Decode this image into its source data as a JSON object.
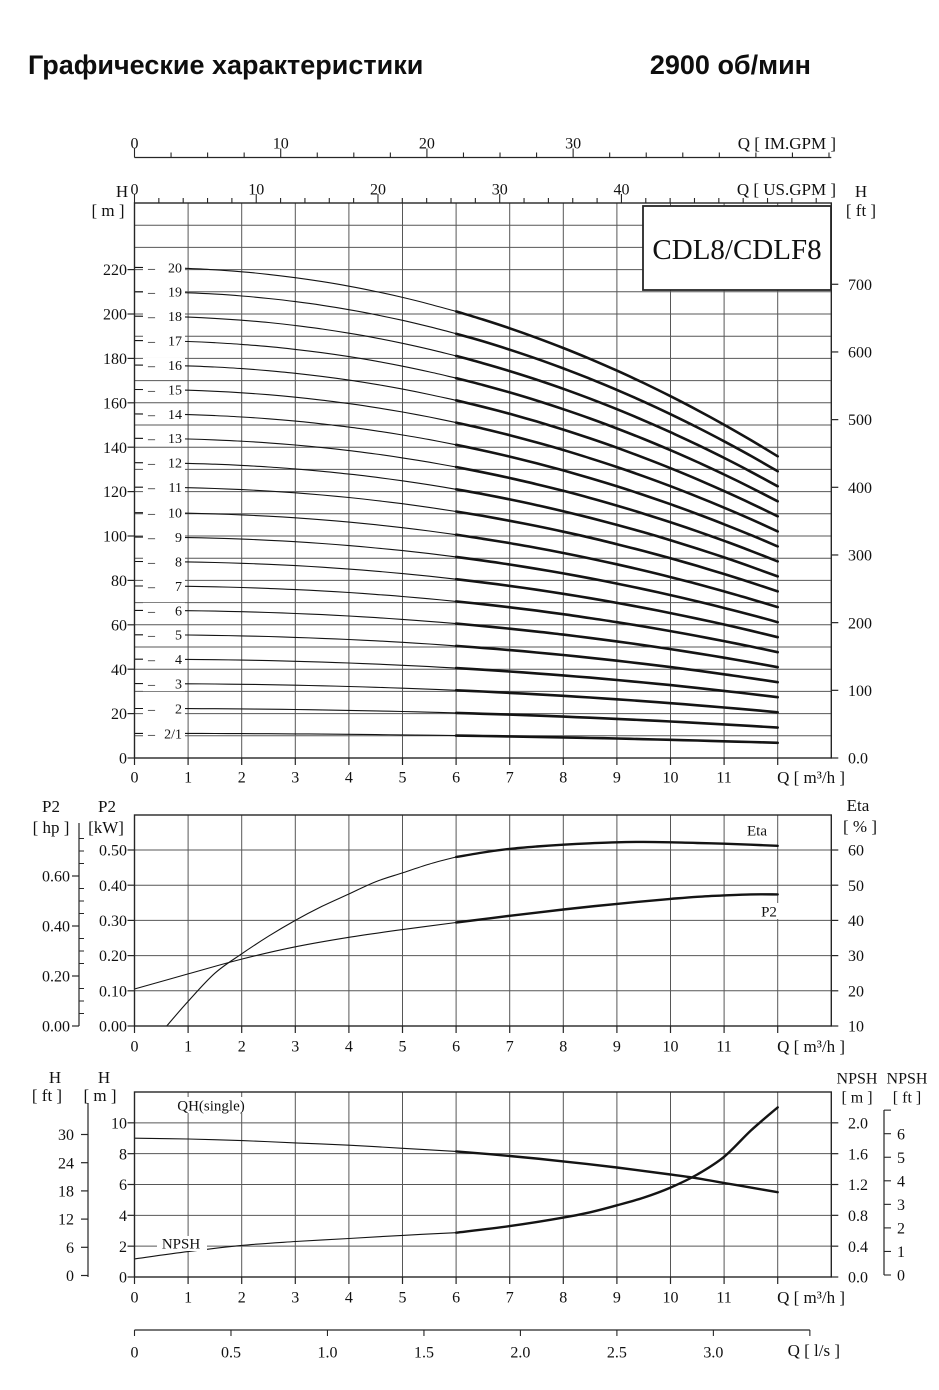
{
  "title": {
    "left": "Графические характеристики",
    "right": "2900 об/мин"
  },
  "colors": {
    "curve": "#141414",
    "grid": "#575757",
    "axis": "#262626",
    "text": "#111111",
    "background": "#ffffff"
  },
  "chart_data": [
    {
      "type": "line",
      "title": "CDL8/CDLF8",
      "model": "CDL8/CDLF8",
      "im_axis": {
        "header": "Q [ IM.GPM ]",
        "labels": [
          0,
          10,
          20,
          30
        ],
        "units_per_m3h": 3.666,
        "minor_step": 2.5
      },
      "us_axis": {
        "header": "Q [ US.GPM ]",
        "labels": [
          0,
          10,
          20,
          30,
          40
        ],
        "units_per_m3h": 4.403,
        "minor_step": 2
      },
      "x_axis": {
        "header": "Q [ m³/h ]",
        "labels": [
          "0",
          "1",
          "2",
          "3",
          "4",
          "5",
          "6",
          "7",
          "8",
          "9",
          "10",
          "11"
        ],
        "range": [
          0,
          13
        ],
        "grid_step": 1
      },
      "y_left": {
        "name": "H",
        "unit": "[ m ]",
        "labels": [
          0,
          20,
          40,
          60,
          80,
          100,
          120,
          140,
          160,
          180,
          200,
          220
        ],
        "range": [
          0,
          250
        ],
        "grid_step": 10
      },
      "y_right": {
        "name": "H",
        "unit": "[ ft ]",
        "labels": [
          "0.0",
          "100",
          "200",
          "300",
          "400",
          "500",
          "600",
          "700"
        ]
      },
      "curve_shape": {
        "droop": 0.385,
        "exponent": 2.1,
        "q_start": 0,
        "q_end": 12,
        "bold_from": 6
      },
      "stages": [
        {
          "label": "– 20",
          "h0": 221
        },
        {
          "label": "– 19",
          "h0": 210
        },
        {
          "label": "– 18",
          "h0": 199
        },
        {
          "label": "– 17",
          "h0": 188
        },
        {
          "label": "– 16",
          "h0": 177
        },
        {
          "label": "– 15",
          "h0": 166
        },
        {
          "label": "– 14",
          "h0": 155
        },
        {
          "label": "– 13",
          "h0": 144
        },
        {
          "label": "– 12",
          "h0": 133
        },
        {
          "label": "– 11",
          "h0": 122
        },
        {
          "label": "– 10",
          "h0": 110.5
        },
        {
          "label": "– 9",
          "h0": 99.5
        },
        {
          "label": "– 8",
          "h0": 88.5
        },
        {
          "label": "– 7",
          "h0": 77.5
        },
        {
          "label": "– 6",
          "h0": 66.5
        },
        {
          "label": "– 5",
          "h0": 55.5
        },
        {
          "label": "– 4",
          "h0": 44.5
        },
        {
          "label": "– 3",
          "h0": 33.5
        },
        {
          "label": "– 2",
          "h0": 22.3
        },
        {
          "label": "–2/1",
          "h0": 11.1
        }
      ]
    },
    {
      "type": "line",
      "x_axis": {
        "header": "Q [ m³/h ]",
        "labels": [
          "0",
          "1",
          "2",
          "3",
          "4",
          "5",
          "6",
          "7",
          "8",
          "9",
          "10",
          "11"
        ],
        "range": [
          0,
          13
        ],
        "grid_step": 1
      },
      "y_hp": {
        "name": "P2",
        "unit": "[ hp ]",
        "labels": [
          "0.00",
          "0.20",
          "0.40",
          "0.60"
        ],
        "minor_step": 0.05,
        "range": [
          0,
          0.8
        ]
      },
      "y_kw": {
        "name": "P2",
        "unit": "[kW]",
        "labels": [
          "0.00",
          "0.10",
          "0.20",
          "0.30",
          "0.40",
          "0.50"
        ],
        "range": [
          0,
          0.6
        ]
      },
      "y_eta": {
        "name": "Eta",
        "unit": "[ % ]",
        "labels": [
          10,
          20,
          30,
          40,
          50,
          60
        ],
        "range": [
          10,
          70
        ]
      },
      "bold_from": 6,
      "series": [
        {
          "name": "P2",
          "label": "P2",
          "unit": "kW",
          "points": [
            [
              0,
              0.105
            ],
            [
              1,
              0.148
            ],
            [
              2,
              0.19
            ],
            [
              3,
              0.225
            ],
            [
              4,
              0.252
            ],
            [
              5,
              0.274
            ],
            [
              6,
              0.294
            ],
            [
              7,
              0.313
            ],
            [
              8,
              0.331
            ],
            [
              9,
              0.347
            ],
            [
              10,
              0.361
            ],
            [
              10.5,
              0.367
            ],
            [
              11,
              0.371
            ],
            [
              11.5,
              0.374
            ],
            [
              12,
              0.374
            ]
          ]
        },
        {
          "name": "Eta",
          "label": "Eta",
          "unit": "%",
          "points": [
            [
              0.6,
              10
            ],
            [
              1,
              17
            ],
            [
              1.5,
              25
            ],
            [
              2,
              30.5
            ],
            [
              2.5,
              35.5
            ],
            [
              3,
              40
            ],
            [
              3.5,
              44
            ],
            [
              4,
              47.5
            ],
            [
              4.5,
              51
            ],
            [
              5,
              53.5
            ],
            [
              5.5,
              56
            ],
            [
              6,
              58
            ],
            [
              6.5,
              59.3
            ],
            [
              7,
              60.3
            ],
            [
              7.5,
              61
            ],
            [
              8,
              61.5
            ],
            [
              8.5,
              61.9
            ],
            [
              9,
              62.2
            ],
            [
              9.5,
              62.3
            ],
            [
              10,
              62.2
            ],
            [
              10.5,
              62
            ],
            [
              11,
              61.8
            ],
            [
              11.5,
              61.5
            ],
            [
              12,
              61.2
            ]
          ]
        }
      ]
    },
    {
      "type": "line",
      "x_axis": {
        "header": "Q [ m³/h ]",
        "labels": [
          "0",
          "1",
          "2",
          "3",
          "4",
          "5",
          "6",
          "7",
          "8",
          "9",
          "10",
          "11"
        ],
        "range": [
          0,
          13
        ],
        "grid_step": 1
      },
      "ls_axis": {
        "header": "Q [ l/s ]",
        "labels": [
          "0",
          "0.5",
          "1.0",
          "1.5",
          "2.0",
          "2.5",
          "3.0"
        ],
        "units_per_m3h": 0.2778
      },
      "y_ft": {
        "name": "H",
        "unit": "[ ft ]",
        "labels": [
          0,
          6,
          12,
          18,
          24,
          30
        ]
      },
      "y_m": {
        "name": "H",
        "unit": "[ m ]",
        "labels": [
          0,
          2,
          4,
          6,
          8,
          10
        ],
        "range": [
          0,
          12
        ],
        "grid_step": 2
      },
      "y_npsh_m": {
        "name": "NPSH",
        "unit": "[ m ]",
        "labels": [
          "0.0",
          "0.4",
          "0.8",
          "1.2",
          "1.6",
          "2.0"
        ]
      },
      "y_npsh_ft": {
        "name": "NPSH",
        "unit": "[ ft ]",
        "labels": [
          0,
          1,
          2,
          3,
          4,
          5,
          6
        ]
      },
      "bold_from": 6,
      "series": [
        {
          "name": "QH(single)",
          "label": "QH(single)",
          "unit": "m",
          "points": [
            [
              0,
              9.0
            ],
            [
              1,
              8.95
            ],
            [
              2,
              8.85
            ],
            [
              3,
              8.7
            ],
            [
              4,
              8.55
            ],
            [
              5,
              8.35
            ],
            [
              6,
              8.15
            ],
            [
              7,
              7.85
            ],
            [
              8,
              7.5
            ],
            [
              9,
              7.1
            ],
            [
              10,
              6.65
            ],
            [
              10.5,
              6.4
            ],
            [
              11,
              6.1
            ],
            [
              11.5,
              5.8
            ],
            [
              12,
              5.5
            ]
          ]
        },
        {
          "name": "NPSH",
          "label": "NPSH",
          "unit": "m NPSH",
          "points": [
            [
              0,
              0.235
            ],
            [
              1,
              0.33
            ],
            [
              2,
              0.41
            ],
            [
              3,
              0.46
            ],
            [
              4,
              0.5
            ],
            [
              5,
              0.54
            ],
            [
              6,
              0.575
            ],
            [
              7,
              0.66
            ],
            [
              8,
              0.77
            ],
            [
              8.5,
              0.84
            ],
            [
              9,
              0.93
            ],
            [
              9.5,
              1.03
            ],
            [
              10,
              1.16
            ],
            [
              10.5,
              1.33
            ],
            [
              11,
              1.56
            ],
            [
              11.5,
              1.9
            ],
            [
              12,
              2.2
            ]
          ]
        }
      ]
    }
  ]
}
